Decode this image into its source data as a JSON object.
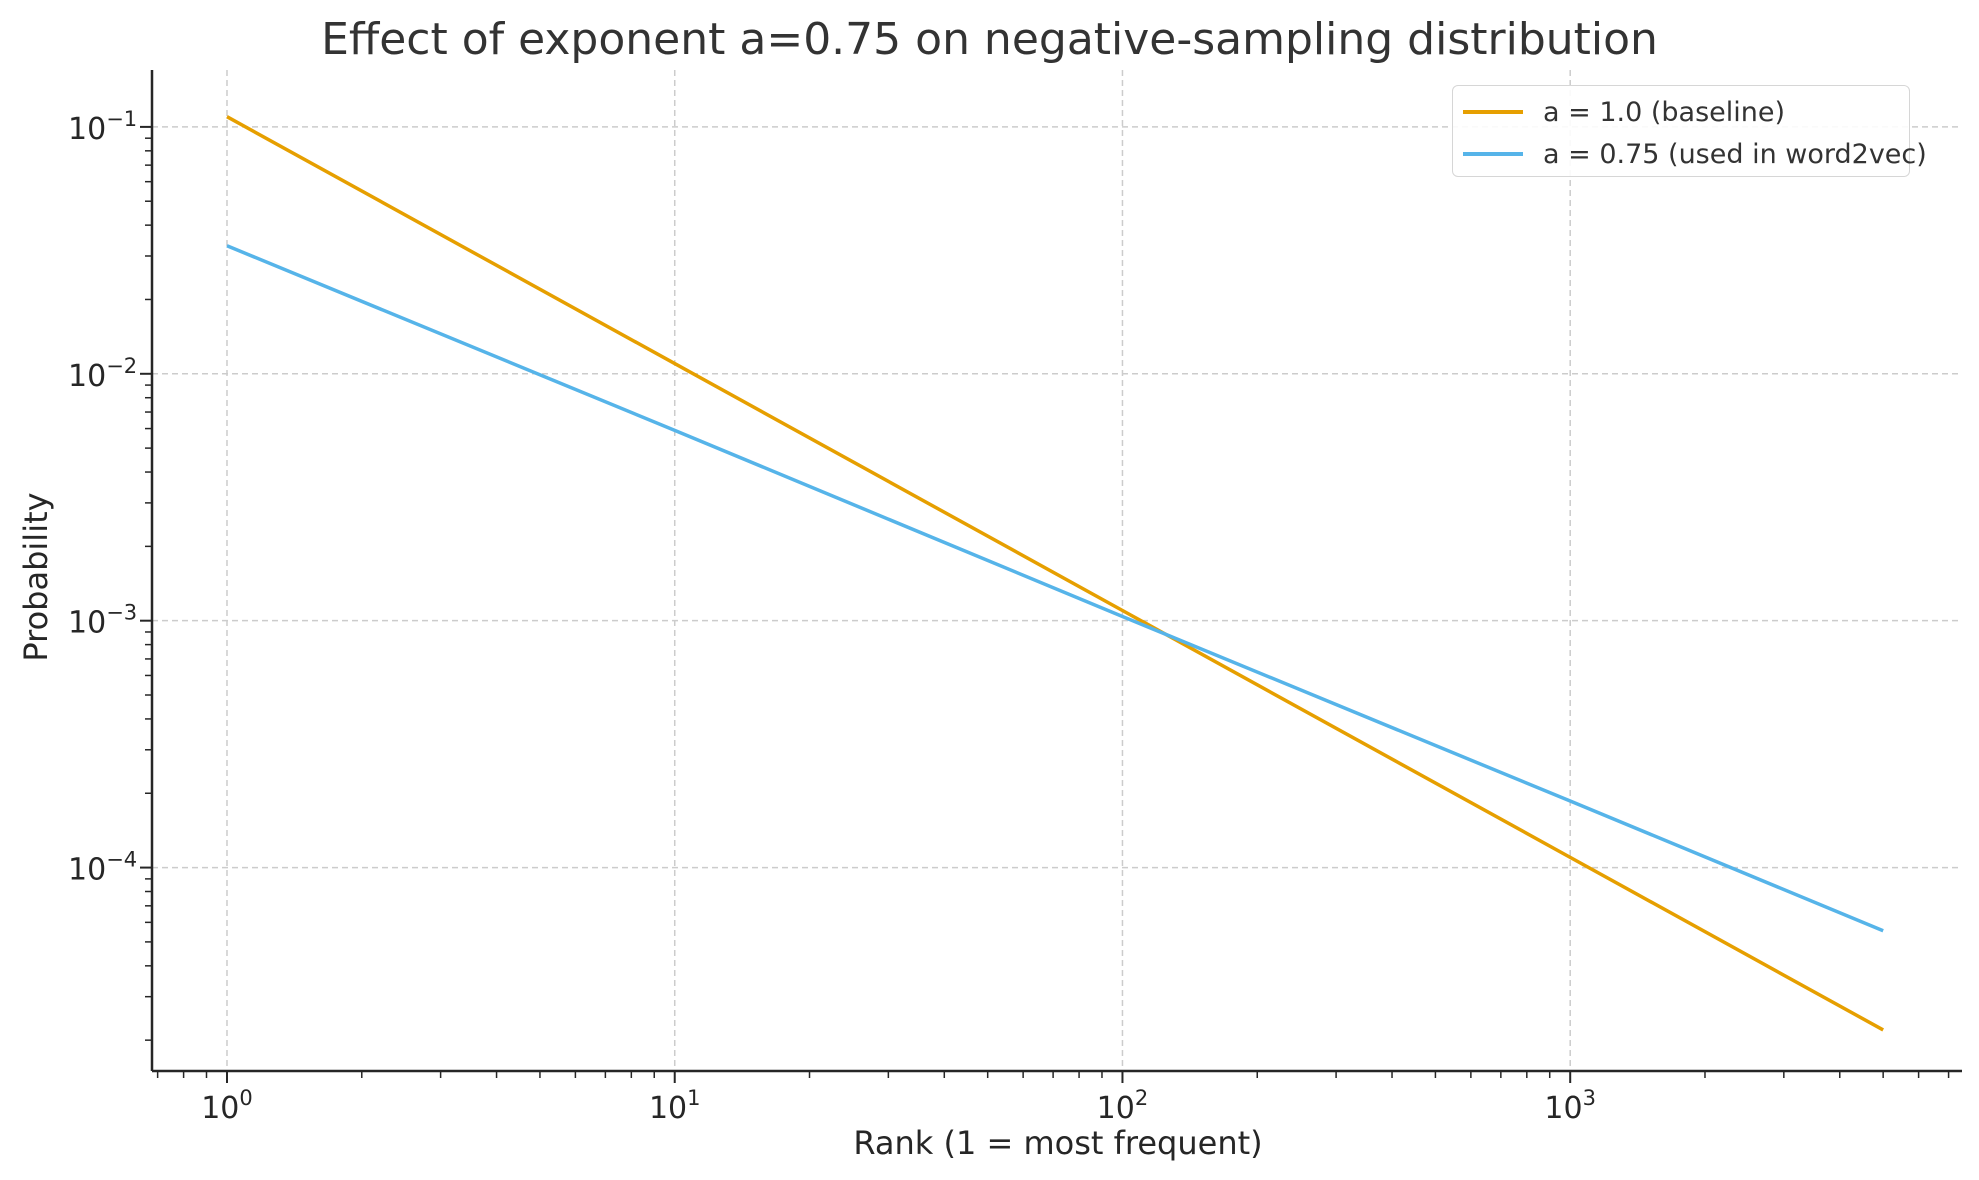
{
  "chart_data": {
    "type": "line",
    "title": "Effect of exponent a=0.75 on negative-sampling distribution",
    "xlabel": "Rank (1 = most frequent)",
    "ylabel": "Probability",
    "xscale": "log",
    "yscale": "log",
    "xlim": [
      0.68,
      7500
    ],
    "ylim": [
      1.5e-05,
      0.17
    ],
    "grid": true,
    "legend_position": "top-right",
    "x_ticks": [
      1,
      10,
      100,
      1000
    ],
    "x_tick_labels": [
      {
        "base": "10",
        "exp": "0"
      },
      {
        "base": "10",
        "exp": "1"
      },
      {
        "base": "10",
        "exp": "2"
      },
      {
        "base": "10",
        "exp": "3"
      }
    ],
    "y_ticks": [
      0.1,
      0.01,
      0.001,
      0.0001
    ],
    "y_tick_labels": [
      {
        "base": "10",
        "exp": "−1"
      },
      {
        "base": "10",
        "exp": "−2"
      },
      {
        "base": "10",
        "exp": "−3"
      },
      {
        "base": "10",
        "exp": "−4"
      }
    ],
    "series": [
      {
        "name": "a = 1.0 (baseline)",
        "color": "#E69F00",
        "x": [
          1,
          10,
          100,
          1000,
          5000
        ],
        "y": [
          0.11,
          0.011,
          0.0011,
          0.00011,
          2.2e-05
        ]
      },
      {
        "name": "a = 0.75 (used in word2vec)",
        "color": "#56B4E9",
        "x": [
          1,
          10,
          100,
          1000,
          5000
        ],
        "y": [
          0.033,
          0.0059,
          0.00104,
          0.000186,
          5.55e-05
        ]
      }
    ]
  }
}
